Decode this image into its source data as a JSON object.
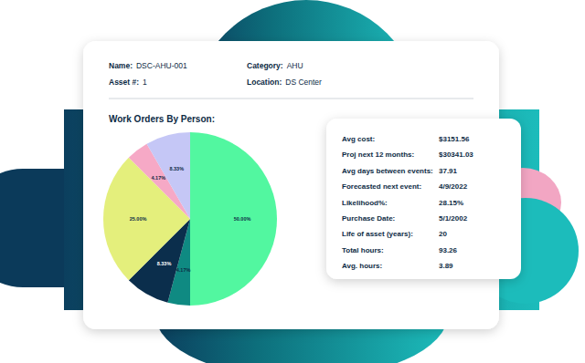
{
  "header": {
    "fields": [
      {
        "label": "Name:",
        "value": "DSC-AHU-001"
      },
      {
        "label": "Category:",
        "value": "AHU"
      },
      {
        "label": "Asset #:",
        "value": "1"
      },
      {
        "label": "Location:",
        "value": "DS Center"
      }
    ]
  },
  "chart_data": {
    "type": "pie",
    "title": "Work Orders By Person:",
    "values": [
      50,
      4.17,
      8.33,
      25,
      4.17,
      8.33
    ],
    "value_labels": [
      "50.00%",
      "4.17%",
      "8.33%",
      "25.00%",
      "4.17%",
      "8.33%"
    ],
    "colors": [
      "#52f7a0",
      "#0f8a82",
      "#0b2e4c",
      "#e4ef7c",
      "#f6a9c6",
      "#c5c7f6"
    ],
    "data_labels": true
  },
  "stats": [
    {
      "label": "Avg cost:",
      "value": "$3151.56"
    },
    {
      "label": "Proj next 12 months:",
      "value": "$30341.03"
    },
    {
      "label": "Avg days between events:",
      "value": "37.91"
    },
    {
      "label": "Forecasted next event:",
      "value": "4/9/2022"
    },
    {
      "label": "Likelihood%:",
      "value": "28.15%"
    },
    {
      "label": "Purchase Date:",
      "value": "5/1/2002"
    },
    {
      "label": "Life of asset (years):",
      "value": "20"
    },
    {
      "label": "Total hours:",
      "value": "93.26"
    },
    {
      "label": "Avg. hours:",
      "value": "3.89"
    }
  ]
}
